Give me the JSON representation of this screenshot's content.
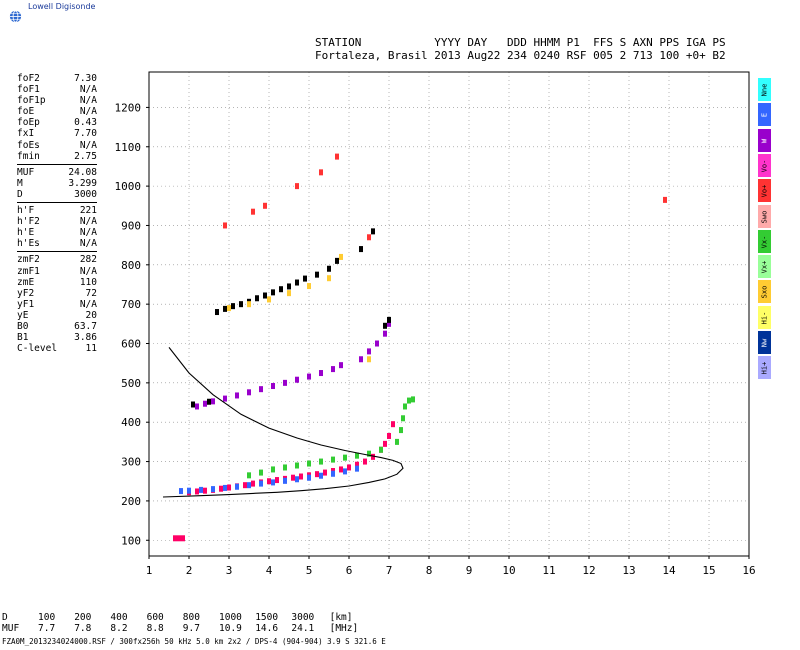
{
  "brand": {
    "name": "Lowell Digisonde",
    "logo_icon": "globe-icon"
  },
  "header": {
    "labels_line": "STATION           YYYY DAY   DDD HHMM P1  FFS S AXN PPS IGA PS",
    "values_line": "Fortaleza, Brasil 2013 Aug22 234 0240 RSF 005 2 713 100 +0+ B2"
  },
  "params": {
    "groups": [
      [
        {
          "label": "foF2",
          "value": "7.30"
        },
        {
          "label": "foF1",
          "value": "N/A"
        },
        {
          "label": "foF1p",
          "value": "N/A"
        },
        {
          "label": "foE",
          "value": "N/A"
        },
        {
          "label": "foEp",
          "value": "0.43"
        },
        {
          "label": "fxI",
          "value": "7.70"
        },
        {
          "label": "foEs",
          "value": "N/A"
        },
        {
          "label": "fmin",
          "value": "2.75"
        }
      ],
      [
        {
          "label": "MUF",
          "value": "24.08"
        },
        {
          "label": "M",
          "value": "3.299"
        },
        {
          "label": "D",
          "value": "3000"
        }
      ],
      [
        {
          "label": "h'F",
          "value": "221"
        },
        {
          "label": "h'F2",
          "value": "N/A"
        },
        {
          "label": "h'E",
          "value": "N/A"
        },
        {
          "label": "h'Es",
          "value": "N/A"
        }
      ],
      [
        {
          "label": "zmF2",
          "value": "282"
        },
        {
          "label": "zmF1",
          "value": "N/A"
        },
        {
          "label": "zmE",
          "value": "110"
        },
        {
          "label": "yF2",
          "value": "72"
        },
        {
          "label": "yF1",
          "value": "N/A"
        },
        {
          "label": "yE",
          "value": "20"
        },
        {
          "label": "B0",
          "value": "63.7"
        },
        {
          "label": "B1",
          "value": "3.86"
        },
        {
          "label": "C-level",
          "value": "11"
        }
      ]
    ]
  },
  "legend": [
    {
      "label": "Nne",
      "color": "#33ffff"
    },
    {
      "label": "E",
      "color": "#3366ff"
    },
    {
      "label": "W",
      "color": "#9900cc"
    },
    {
      "label": "Vo-",
      "color": "#ff33cc"
    },
    {
      "label": "Vo+",
      "color": "#ff3333"
    },
    {
      "label": "Swo",
      "color": "#ffaaaa"
    },
    {
      "label": "Vx-",
      "color": "#33cc33"
    },
    {
      "label": "Vx+",
      "color": "#99ff99"
    },
    {
      "label": "Sxo",
      "color": "#ffcc33"
    },
    {
      "label": "Hi-",
      "color": "#ffff66"
    },
    {
      "label": "Nw",
      "color": "#003399"
    },
    {
      "label": "Hi+",
      "color": "#aaaaff"
    }
  ],
  "muf_table": {
    "d_label": "D",
    "muf_label": "MUF",
    "d_values": [
      "100",
      "200",
      "400",
      "600",
      "800",
      "1000",
      "1500",
      "3000"
    ],
    "muf_values": [
      "7.7",
      "7.8",
      "8.2",
      "8.8",
      "9.7",
      "10.9",
      "14.6",
      "24.1"
    ],
    "d_unit": "[km]",
    "muf_unit": "[MHz]"
  },
  "footer": "FZA0M_2013234024000.RSF / 300fx256h 50 kHz 5.0 km 2x2 / DPS-4 (904-904)  3.9 S 321.6 E",
  "chart_data": {
    "type": "scatter",
    "title": "",
    "xlabel": "",
    "ylabel": "",
    "xlim": [
      1,
      16
    ],
    "ylim": [
      60,
      1290
    ],
    "xticks": [
      "1",
      "2",
      "3",
      "4",
      "5",
      "6",
      "7",
      "8",
      "9",
      "10",
      "11",
      "12",
      "13",
      "14",
      "15",
      "16"
    ],
    "yticks": [
      "100",
      "200",
      "300",
      "400",
      "500",
      "600",
      "700",
      "800",
      "900",
      "1000",
      "1100",
      "1200"
    ],
    "grid": true,
    "series": [
      {
        "color": "#ff0066",
        "x": [
          1.65,
          1.75,
          1.85,
          2.0,
          2.2,
          2.4,
          2.6,
          2.8,
          3.0,
          3.2,
          3.4,
          3.6,
          3.8,
          4.0,
          4.2,
          4.4,
          4.6,
          4.8,
          5.0,
          5.2,
          5.4,
          5.6,
          5.8,
          6.0,
          6.2,
          6.4,
          6.6,
          6.8,
          6.9,
          7.0,
          7.1
        ],
        "y": [
          105,
          105,
          105,
          222,
          224,
          226,
          228,
          231,
          234,
          237,
          240,
          244,
          247,
          250,
          253,
          256,
          259,
          262,
          265,
          268,
          272,
          276,
          280,
          285,
          292,
          300,
          312,
          330,
          345,
          365,
          395
        ]
      },
      {
        "color": "#33cc33",
        "x": [
          3.5,
          3.8,
          4.1,
          4.4,
          4.7,
          5.0,
          5.3,
          5.6,
          5.9,
          6.2,
          6.5,
          6.8,
          7.2,
          7.3,
          7.35,
          7.4,
          7.5,
          7.6
        ],
        "y": [
          265,
          272,
          280,
          285,
          290,
          295,
          300,
          305,
          310,
          315,
          320,
          330,
          350,
          380,
          410,
          440,
          455,
          458
        ]
      },
      {
        "color": "#3366ff",
        "x": [
          1.8,
          2.0,
          2.3,
          2.6,
          2.9,
          3.2,
          3.5,
          3.8,
          4.1,
          4.4,
          4.7,
          5.0,
          5.3,
          5.6,
          5.9,
          6.2
        ],
        "y": [
          225,
          226,
          228,
          230,
          233,
          236,
          240,
          244,
          247,
          251,
          255,
          259,
          264,
          269,
          275,
          282
        ]
      },
      {
        "color": "#9900cc",
        "x": [
          2.2,
          2.4,
          2.6,
          2.9,
          3.2,
          3.5,
          3.8,
          4.1,
          4.4,
          4.7,
          5.0,
          5.3,
          5.6,
          5.8,
          6.3,
          6.5,
          6.7,
          6.9,
          7.0
        ],
        "y": [
          440,
          447,
          453,
          460,
          468,
          476,
          484,
          492,
          500,
          508,
          516,
          525,
          535,
          545,
          560,
          580,
          600,
          625,
          650
        ]
      },
      {
        "color": "#000000",
        "x": [
          2.1,
          2.5,
          2.7,
          2.9,
          3.1,
          3.3,
          3.5,
          3.7,
          3.9,
          4.1,
          4.3,
          4.5,
          4.7,
          4.9,
          5.2,
          5.5,
          5.7,
          6.3,
          6.6,
          6.9,
          7.0
        ],
        "y": [
          445,
          452,
          680,
          688,
          695,
          700,
          706,
          715,
          722,
          730,
          738,
          745,
          755,
          765,
          775,
          790,
          810,
          840,
          885,
          645,
          660
        ]
      },
      {
        "color": "#ff3333",
        "x": [
          2.9,
          3.6,
          3.9,
          4.7,
          5.3,
          5.7,
          6.5,
          13.9
        ],
        "y": [
          900,
          935,
          950,
          1000,
          1035,
          1075,
          870,
          965
        ]
      },
      {
        "color": "#ffcc33",
        "x": [
          3.0,
          3.5,
          4.0,
          4.5,
          5.0,
          5.5,
          5.8,
          6.5
        ],
        "y": [
          690,
          700,
          712,
          728,
          746,
          766,
          820,
          560
        ]
      }
    ],
    "fit_curve": {
      "x": [
        1.35,
        2.2,
        3.0,
        3.6,
        4.2,
        4.8,
        5.4,
        6.0,
        6.5,
        6.9,
        7.2,
        7.35,
        7.3,
        7.1,
        6.8,
        6.4,
        5.9,
        5.3,
        4.7,
        4.0,
        3.3,
        2.6,
        2.0,
        1.5
      ],
      "y": [
        210,
        213,
        216,
        219,
        222,
        226,
        231,
        238,
        247,
        256,
        268,
        283,
        295,
        303,
        310,
        318,
        328,
        342,
        360,
        385,
        420,
        470,
        525,
        590
      ]
    }
  }
}
